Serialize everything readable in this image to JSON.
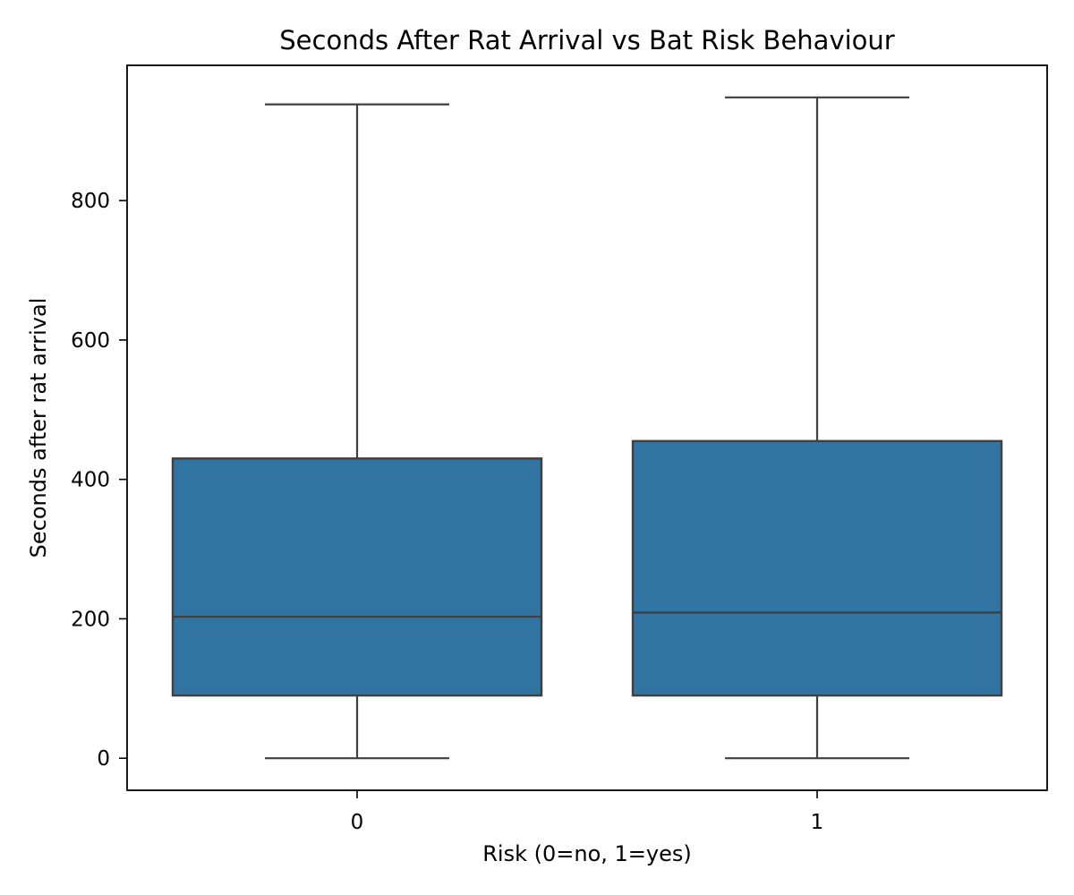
{
  "chart_data": {
    "type": "box",
    "title": "Seconds After Rat Arrival vs Bat Risk Behaviour",
    "xlabel": "Risk (0=no, 1=yes)",
    "ylabel": "Seconds after rat arrival",
    "categories": [
      "0",
      "1"
    ],
    "series": [
      {
        "category": "0",
        "min": 0,
        "q1": 90,
        "median": 203,
        "q3": 430,
        "max": 938
      },
      {
        "category": "1",
        "min": 0,
        "q1": 90,
        "median": 209,
        "q3": 455,
        "max": 948
      }
    ],
    "yticks": [
      0,
      200,
      400,
      600,
      800
    ],
    "ylim": [
      -46,
      994
    ],
    "grid": false,
    "legend": "none",
    "colors": {
      "box_fill": "#3274a1",
      "box_edge": "#3f3f3f",
      "frame": "#000000"
    }
  }
}
